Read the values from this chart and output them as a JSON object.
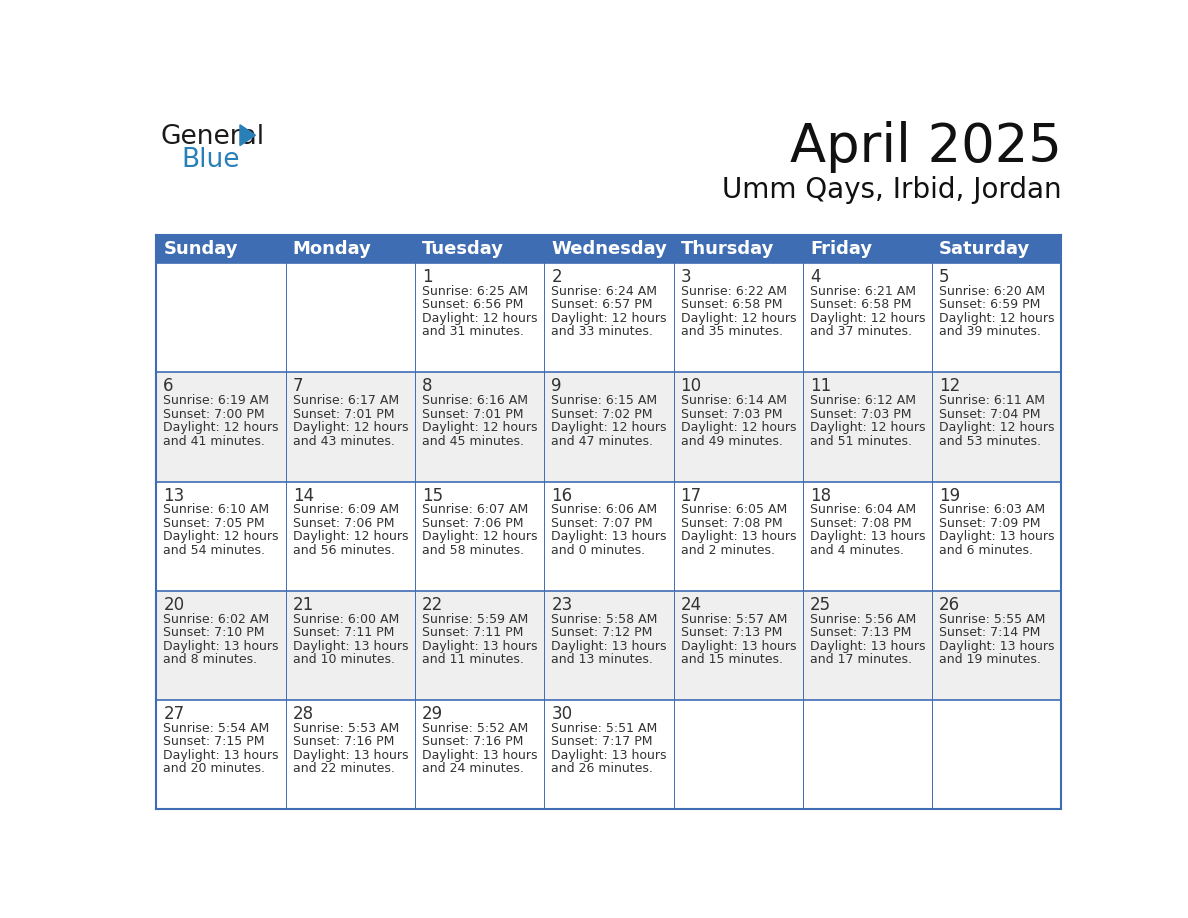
{
  "title": "April 2025",
  "subtitle": "Umm Qays, Irbid, Jordan",
  "header_color": "#3F6DB4",
  "header_text_color": "#FFFFFF",
  "cell_bg_white": "#FFFFFF",
  "cell_bg_gray": "#EFEFEF",
  "border_color": "#3F6DB4",
  "text_color": "#333333",
  "days_of_week": [
    "Sunday",
    "Monday",
    "Tuesday",
    "Wednesday",
    "Thursday",
    "Friday",
    "Saturday"
  ],
  "weeks": [
    [
      {
        "day": "",
        "sunrise": "",
        "sunset": "",
        "daylight": ""
      },
      {
        "day": "",
        "sunrise": "",
        "sunset": "",
        "daylight": ""
      },
      {
        "day": "1",
        "sunrise": "6:25 AM",
        "sunset": "6:56 PM",
        "daylight": "12 hours\nand 31 minutes."
      },
      {
        "day": "2",
        "sunrise": "6:24 AM",
        "sunset": "6:57 PM",
        "daylight": "12 hours\nand 33 minutes."
      },
      {
        "day": "3",
        "sunrise": "6:22 AM",
        "sunset": "6:58 PM",
        "daylight": "12 hours\nand 35 minutes."
      },
      {
        "day": "4",
        "sunrise": "6:21 AM",
        "sunset": "6:58 PM",
        "daylight": "12 hours\nand 37 minutes."
      },
      {
        "day": "5",
        "sunrise": "6:20 AM",
        "sunset": "6:59 PM",
        "daylight": "12 hours\nand 39 minutes."
      }
    ],
    [
      {
        "day": "6",
        "sunrise": "6:19 AM",
        "sunset": "7:00 PM",
        "daylight": "12 hours\nand 41 minutes."
      },
      {
        "day": "7",
        "sunrise": "6:17 AM",
        "sunset": "7:01 PM",
        "daylight": "12 hours\nand 43 minutes."
      },
      {
        "day": "8",
        "sunrise": "6:16 AM",
        "sunset": "7:01 PM",
        "daylight": "12 hours\nand 45 minutes."
      },
      {
        "day": "9",
        "sunrise": "6:15 AM",
        "sunset": "7:02 PM",
        "daylight": "12 hours\nand 47 minutes."
      },
      {
        "day": "10",
        "sunrise": "6:14 AM",
        "sunset": "7:03 PM",
        "daylight": "12 hours\nand 49 minutes."
      },
      {
        "day": "11",
        "sunrise": "6:12 AM",
        "sunset": "7:03 PM",
        "daylight": "12 hours\nand 51 minutes."
      },
      {
        "day": "12",
        "sunrise": "6:11 AM",
        "sunset": "7:04 PM",
        "daylight": "12 hours\nand 53 minutes."
      }
    ],
    [
      {
        "day": "13",
        "sunrise": "6:10 AM",
        "sunset": "7:05 PM",
        "daylight": "12 hours\nand 54 minutes."
      },
      {
        "day": "14",
        "sunrise": "6:09 AM",
        "sunset": "7:06 PM",
        "daylight": "12 hours\nand 56 minutes."
      },
      {
        "day": "15",
        "sunrise": "6:07 AM",
        "sunset": "7:06 PM",
        "daylight": "12 hours\nand 58 minutes."
      },
      {
        "day": "16",
        "sunrise": "6:06 AM",
        "sunset": "7:07 PM",
        "daylight": "13 hours\nand 0 minutes."
      },
      {
        "day": "17",
        "sunrise": "6:05 AM",
        "sunset": "7:08 PM",
        "daylight": "13 hours\nand 2 minutes."
      },
      {
        "day": "18",
        "sunrise": "6:04 AM",
        "sunset": "7:08 PM",
        "daylight": "13 hours\nand 4 minutes."
      },
      {
        "day": "19",
        "sunrise": "6:03 AM",
        "sunset": "7:09 PM",
        "daylight": "13 hours\nand 6 minutes."
      }
    ],
    [
      {
        "day": "20",
        "sunrise": "6:02 AM",
        "sunset": "7:10 PM",
        "daylight": "13 hours\nand 8 minutes."
      },
      {
        "day": "21",
        "sunrise": "6:00 AM",
        "sunset": "7:11 PM",
        "daylight": "13 hours\nand 10 minutes."
      },
      {
        "day": "22",
        "sunrise": "5:59 AM",
        "sunset": "7:11 PM",
        "daylight": "13 hours\nand 11 minutes."
      },
      {
        "day": "23",
        "sunrise": "5:58 AM",
        "sunset": "7:12 PM",
        "daylight": "13 hours\nand 13 minutes."
      },
      {
        "day": "24",
        "sunrise": "5:57 AM",
        "sunset": "7:13 PM",
        "daylight": "13 hours\nand 15 minutes."
      },
      {
        "day": "25",
        "sunrise": "5:56 AM",
        "sunset": "7:13 PM",
        "daylight": "13 hours\nand 17 minutes."
      },
      {
        "day": "26",
        "sunrise": "5:55 AM",
        "sunset": "7:14 PM",
        "daylight": "13 hours\nand 19 minutes."
      }
    ],
    [
      {
        "day": "27",
        "sunrise": "5:54 AM",
        "sunset": "7:15 PM",
        "daylight": "13 hours\nand 20 minutes."
      },
      {
        "day": "28",
        "sunrise": "5:53 AM",
        "sunset": "7:16 PM",
        "daylight": "13 hours\nand 22 minutes."
      },
      {
        "day": "29",
        "sunrise": "5:52 AM",
        "sunset": "7:16 PM",
        "daylight": "13 hours\nand 24 minutes."
      },
      {
        "day": "30",
        "sunrise": "5:51 AM",
        "sunset": "7:17 PM",
        "daylight": "13 hours\nand 26 minutes."
      },
      {
        "day": "",
        "sunrise": "",
        "sunset": "",
        "daylight": ""
      },
      {
        "day": "",
        "sunrise": "",
        "sunset": "",
        "daylight": ""
      },
      {
        "day": "",
        "sunrise": "",
        "sunset": "",
        "daylight": ""
      }
    ]
  ],
  "logo_text_general": "General",
  "logo_text_blue": "Blue",
  "logo_color_general": "#1a1a1a",
  "logo_color_blue": "#2980B9",
  "logo_triangle_color": "#2980B9",
  "title_fontsize": 38,
  "subtitle_fontsize": 20,
  "header_fontsize": 13,
  "day_num_fontsize": 12,
  "cell_text_fontsize": 9
}
